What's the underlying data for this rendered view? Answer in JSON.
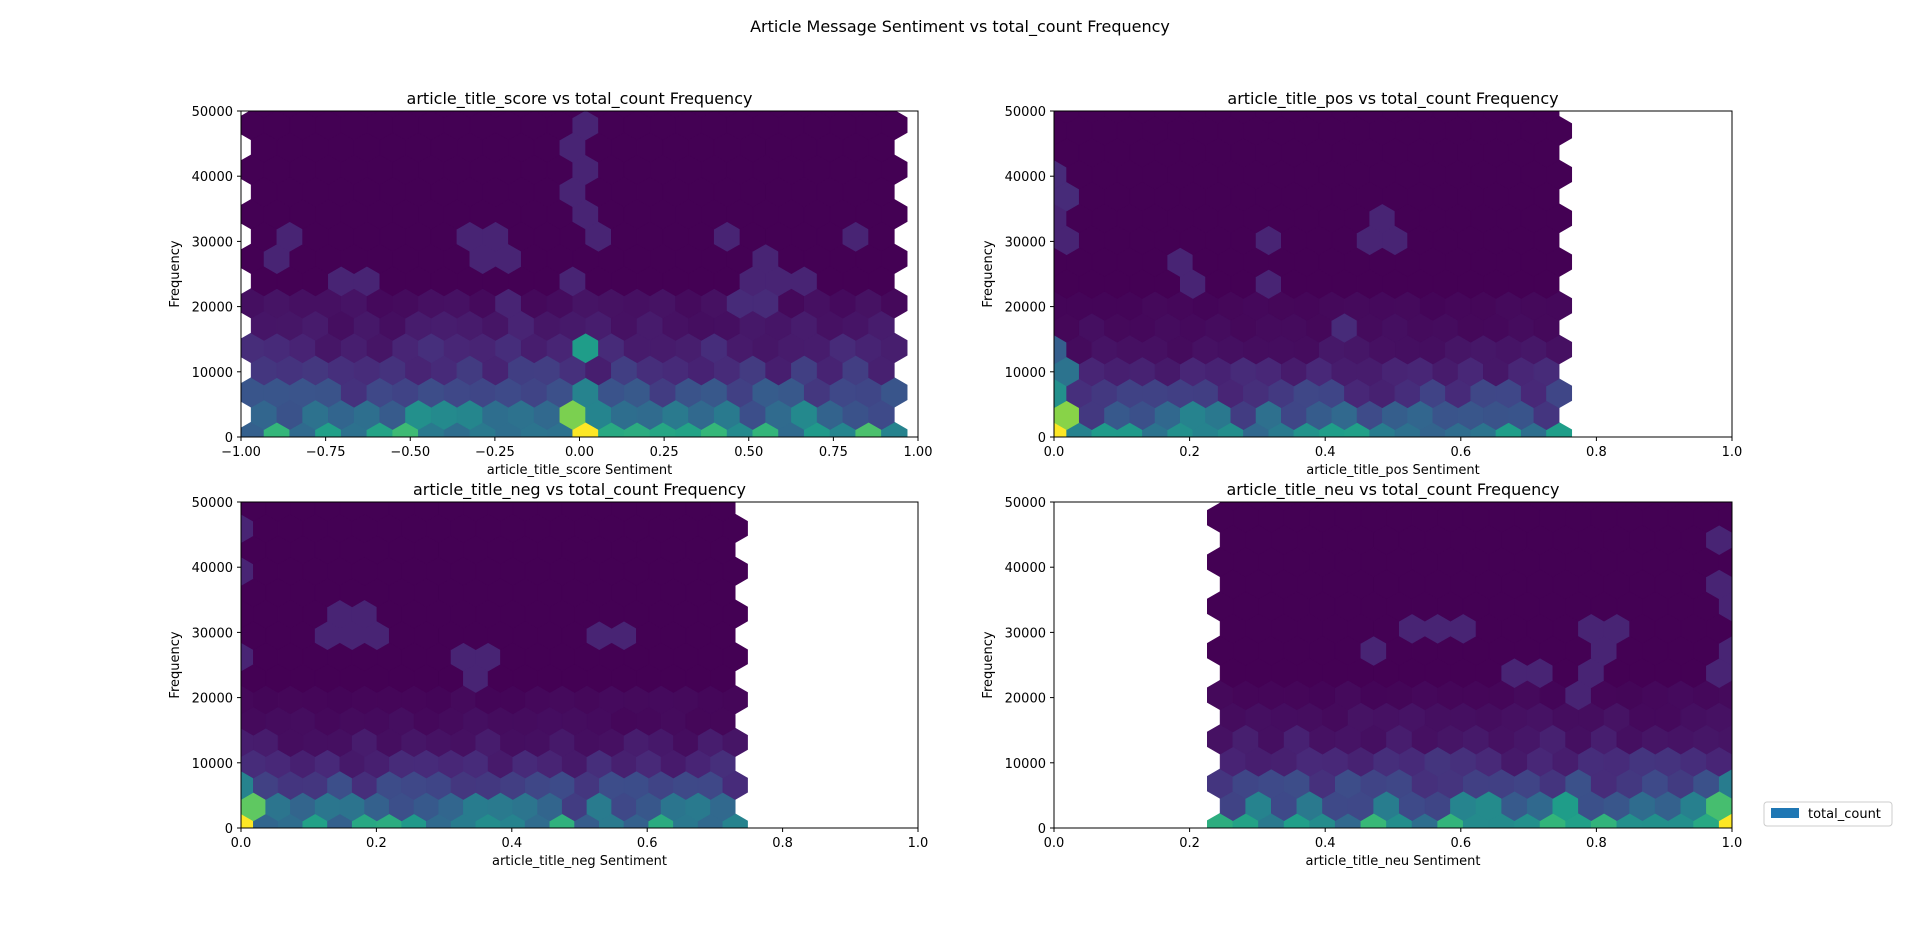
{
  "figure": {
    "suptitle": "Article Message Sentiment vs total_count Frequency",
    "legend": {
      "label": "total_count",
      "color": "#1f77b4",
      "placement": "right"
    }
  },
  "colors": {
    "background": "#ffffff",
    "colormap": "viridis",
    "hex_fill_base": "#440154"
  },
  "chart_data": [
    {
      "type": "hexbin",
      "title": "article_title_score vs total_count Frequency",
      "xlabel": "article_title_score Sentiment",
      "ylabel": "Frequency",
      "xlim": [
        -1,
        1
      ],
      "ylim": [
        0,
        50000
      ],
      "xticks": [
        -1.0,
        -0.75,
        -0.5,
        -0.25,
        0.0,
        0.25,
        0.5,
        0.75,
        1.0
      ],
      "xticklabels": [
        "−1.00",
        "−0.75",
        "−0.50",
        "−0.25",
        "0.00",
        "0.25",
        "0.50",
        "0.75",
        "1.00"
      ],
      "yticks": [
        0,
        10000,
        20000,
        30000,
        40000,
        50000
      ],
      "yticklabels": [
        "0",
        "10000",
        "20000",
        "30000",
        "40000",
        "50000"
      ],
      "grid": false,
      "data_extent_x": [
        -0.97,
        0.93
      ],
      "gridsize_x": 25,
      "density_rows": [
        0.55,
        0.4,
        0.22,
        0.14,
        0.1,
        0.06,
        0.04
      ],
      "hotspots": [
        {
          "x": 0.0,
          "y": 0,
          "weight": 1.0
        },
        {
          "x": -0.02,
          "y": 2000,
          "weight": 0.8
        },
        {
          "x": 0.0,
          "y": 3500,
          "weight": 0.55
        },
        {
          "x": 0.0,
          "y": 5000,
          "weight": 0.45
        },
        {
          "x": 0.0,
          "y": 14000,
          "weight": 0.55
        },
        {
          "x": 0.0,
          "y": 45500,
          "weight": 0.1
        },
        {
          "x": 0.0,
          "y": 38500,
          "weight": 0.1
        },
        {
          "x": 0.03,
          "y": 33000,
          "weight": 0.1
        },
        {
          "x": -0.3,
          "y": 31000,
          "weight": 0.1
        },
        {
          "x": -0.25,
          "y": 29000,
          "weight": 0.1
        },
        {
          "x": 0.83,
          "y": 31000,
          "weight": 0.1
        },
        {
          "x": 0.42,
          "y": 31000,
          "weight": 0.1
        },
        {
          "x": -0.88,
          "y": 29000,
          "weight": 0.1
        },
        {
          "x": 0.53,
          "y": 25500,
          "weight": 0.1
        },
        {
          "x": 0.63,
          "y": 24000,
          "weight": 0.1
        },
        {
          "x": -0.68,
          "y": 24000,
          "weight": 0.1
        },
        {
          "x": -0.0,
          "y": 24000,
          "weight": 0.1
        },
        {
          "x": 0.5,
          "y": 20000,
          "weight": 0.12
        },
        {
          "x": -0.18,
          "y": 19000,
          "weight": 0.1
        }
      ]
    },
    {
      "type": "hexbin",
      "title": "article_title_pos vs total_count Frequency",
      "xlabel": "article_title_pos Sentiment",
      "ylabel": "Frequency",
      "xlim": [
        0,
        1
      ],
      "ylim": [
        0,
        50000
      ],
      "xticks": [
        0.0,
        0.2,
        0.4,
        0.6,
        0.8,
        1.0
      ],
      "xticklabels": [
        "0.0",
        "0.2",
        "0.4",
        "0.6",
        "0.8",
        "1.0"
      ],
      "yticks": [
        0,
        10000,
        20000,
        30000,
        40000,
        50000
      ],
      "yticklabels": [
        "0",
        "10000",
        "20000",
        "30000",
        "40000",
        "50000"
      ],
      "grid": false,
      "data_extent_x": [
        0.0,
        0.745
      ],
      "gridsize_x": 20,
      "density_rows": [
        0.42,
        0.28,
        0.16,
        0.09,
        0.05,
        0.03,
        0.02
      ],
      "hotspots": [
        {
          "x": 0.0,
          "y": 0,
          "weight": 1.0
        },
        {
          "x": 0.0,
          "y": 2000,
          "weight": 0.82
        },
        {
          "x": 0.0,
          "y": 4000,
          "weight": 0.6
        },
        {
          "x": 0.0,
          "y": 6000,
          "weight": 0.5
        },
        {
          "x": 0.0,
          "y": 8000,
          "weight": 0.42
        },
        {
          "x": 0.0,
          "y": 10000,
          "weight": 0.38
        },
        {
          "x": 0.0,
          "y": 13000,
          "weight": 0.3
        },
        {
          "x": 0.2,
          "y": 1000,
          "weight": 0.45
        },
        {
          "x": 0.25,
          "y": 1000,
          "weight": 0.4
        },
        {
          "x": 0.15,
          "y": 1000,
          "weight": 0.38
        },
        {
          "x": 0.0,
          "y": 38000,
          "weight": 0.12
        },
        {
          "x": 0.0,
          "y": 31000,
          "weight": 0.1
        },
        {
          "x": 0.31,
          "y": 31000,
          "weight": 0.1
        },
        {
          "x": 0.48,
          "y": 31000,
          "weight": 0.1
        },
        {
          "x": 0.2,
          "y": 25500,
          "weight": 0.1
        },
        {
          "x": 0.31,
          "y": 24000,
          "weight": 0.1
        },
        {
          "x": 0.42,
          "y": 16500,
          "weight": 0.12
        }
      ]
    },
    {
      "type": "hexbin",
      "title": "article_title_neg vs total_count Frequency",
      "xlabel": "article_title_neg Sentiment",
      "ylabel": "Frequency",
      "xlim": [
        0,
        1
      ],
      "ylim": [
        0,
        50000
      ],
      "xticks": [
        0.0,
        0.2,
        0.4,
        0.6,
        0.8,
        1.0
      ],
      "xticklabels": [
        "0.0",
        "0.2",
        "0.4",
        "0.6",
        "0.8",
        "1.0"
      ],
      "yticks": [
        0,
        10000,
        20000,
        30000,
        40000,
        50000
      ],
      "yticklabels": [
        "0",
        "10000",
        "20000",
        "30000",
        "40000",
        "50000"
      ],
      "grid": false,
      "data_extent_x": [
        0.0,
        0.73
      ],
      "gridsize_x": 20,
      "density_rows": [
        0.48,
        0.32,
        0.18,
        0.1,
        0.06,
        0.03,
        0.02
      ],
      "hotspots": [
        {
          "x": 0.0,
          "y": 0,
          "weight": 1.0
        },
        {
          "x": 0.0,
          "y": 2000,
          "weight": 0.75
        },
        {
          "x": 0.0,
          "y": 4000,
          "weight": 0.45
        },
        {
          "x": 0.0,
          "y": 7000,
          "weight": 0.35
        },
        {
          "x": 0.18,
          "y": 1000,
          "weight": 0.45
        },
        {
          "x": 0.25,
          "y": 1000,
          "weight": 0.42
        },
        {
          "x": 0.35,
          "y": 1000,
          "weight": 0.42
        },
        {
          "x": 0.0,
          "y": 45500,
          "weight": 0.1
        },
        {
          "x": 0.0,
          "y": 38500,
          "weight": 0.1
        },
        {
          "x": 0.13,
          "y": 31000,
          "weight": 0.1
        },
        {
          "x": 0.18,
          "y": 31000,
          "weight": 0.1
        },
        {
          "x": 0.17,
          "y": 29000,
          "weight": 0.1
        },
        {
          "x": 0.55,
          "y": 29000,
          "weight": 0.1
        },
        {
          "x": 0.35,
          "y": 25500,
          "weight": 0.1
        },
        {
          "x": 0.0,
          "y": 25500,
          "weight": 0.1
        }
      ]
    },
    {
      "type": "hexbin",
      "title": "article_title_neu vs total_count Frequency",
      "xlabel": "article_title_neu Sentiment",
      "ylabel": "Frequency",
      "xlim": [
        0,
        1
      ],
      "ylim": [
        0,
        50000
      ],
      "xticks": [
        0.0,
        0.2,
        0.4,
        0.6,
        0.8,
        1.0
      ],
      "xticklabels": [
        "0.0",
        "0.2",
        "0.4",
        "0.6",
        "0.8",
        "1.0"
      ],
      "yticks": [
        0,
        10000,
        20000,
        30000,
        40000,
        50000
      ],
      "yticklabels": [
        "0",
        "10000",
        "20000",
        "30000",
        "40000",
        "50000"
      ],
      "grid": false,
      "data_extent_x": [
        0.245,
        1.0
      ],
      "gridsize_x": 20,
      "density_rows": [
        0.5,
        0.34,
        0.2,
        0.12,
        0.07,
        0.04,
        0.02
      ],
      "hotspots": [
        {
          "x": 1.0,
          "y": 0,
          "weight": 1.0
        },
        {
          "x": 1.0,
          "y": 2000,
          "weight": 0.7
        },
        {
          "x": 1.0,
          "y": 4000,
          "weight": 0.5
        },
        {
          "x": 1.0,
          "y": 6000,
          "weight": 0.42
        },
        {
          "x": 1.0,
          "y": 8000,
          "weight": 0.35
        },
        {
          "x": 0.8,
          "y": 0,
          "weight": 0.65
        },
        {
          "x": 0.75,
          "y": 1000,
          "weight": 0.55
        },
        {
          "x": 0.7,
          "y": 1000,
          "weight": 0.5
        },
        {
          "x": 0.65,
          "y": 1000,
          "weight": 0.48
        },
        {
          "x": 0.85,
          "y": 1000,
          "weight": 0.5
        },
        {
          "x": 0.6,
          "y": 1000,
          "weight": 0.42
        },
        {
          "x": 0.98,
          "y": 45500,
          "weight": 0.1
        },
        {
          "x": 0.98,
          "y": 38500,
          "weight": 0.1
        },
        {
          "x": 0.55,
          "y": 31000,
          "weight": 0.1
        },
        {
          "x": 0.6,
          "y": 31000,
          "weight": 0.1
        },
        {
          "x": 0.8,
          "y": 31000,
          "weight": 0.1
        },
        {
          "x": 0.82,
          "y": 29000,
          "weight": 0.1
        },
        {
          "x": 0.48,
          "y": 27500,
          "weight": 0.1
        },
        {
          "x": 0.68,
          "y": 24000,
          "weight": 0.1
        },
        {
          "x": 0.7,
          "y": 24000,
          "weight": 0.1
        },
        {
          "x": 0.78,
          "y": 22000,
          "weight": 0.1
        },
        {
          "x": 1.0,
          "y": 33000,
          "weight": 0.1
        },
        {
          "x": 1.0,
          "y": 25000,
          "weight": 0.1
        }
      ]
    }
  ]
}
